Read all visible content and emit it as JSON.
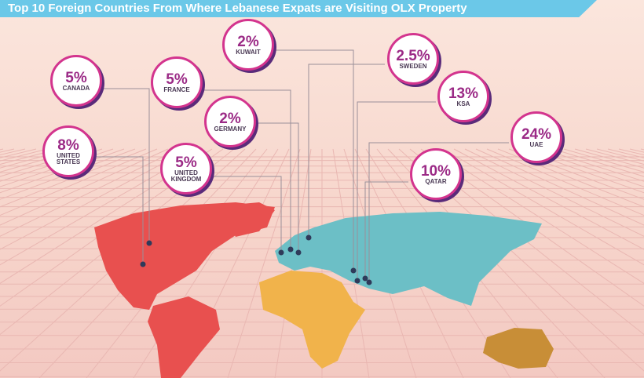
{
  "title": "Top 10 Foreign Countries From Where Lebanese Expats are Visiting OLX Property",
  "countries": [
    {
      "percent": "2%",
      "name": "KUWAIT"
    },
    {
      "percent": "2.5%",
      "name": "SWEDEN"
    },
    {
      "percent": "5%",
      "name": "CANADA"
    },
    {
      "percent": "5%",
      "name": "FRANCE"
    },
    {
      "percent": "13%",
      "name": "KSA"
    },
    {
      "percent": "2%",
      "name": "GERMANY"
    },
    {
      "percent": "24%",
      "name": "UAE"
    },
    {
      "percent": "8%",
      "name": "UNITED STATES"
    },
    {
      "percent": "5%",
      "name": "UNITED KINGDOM"
    },
    {
      "percent": "10%",
      "name": "QATAR"
    }
  ]
}
